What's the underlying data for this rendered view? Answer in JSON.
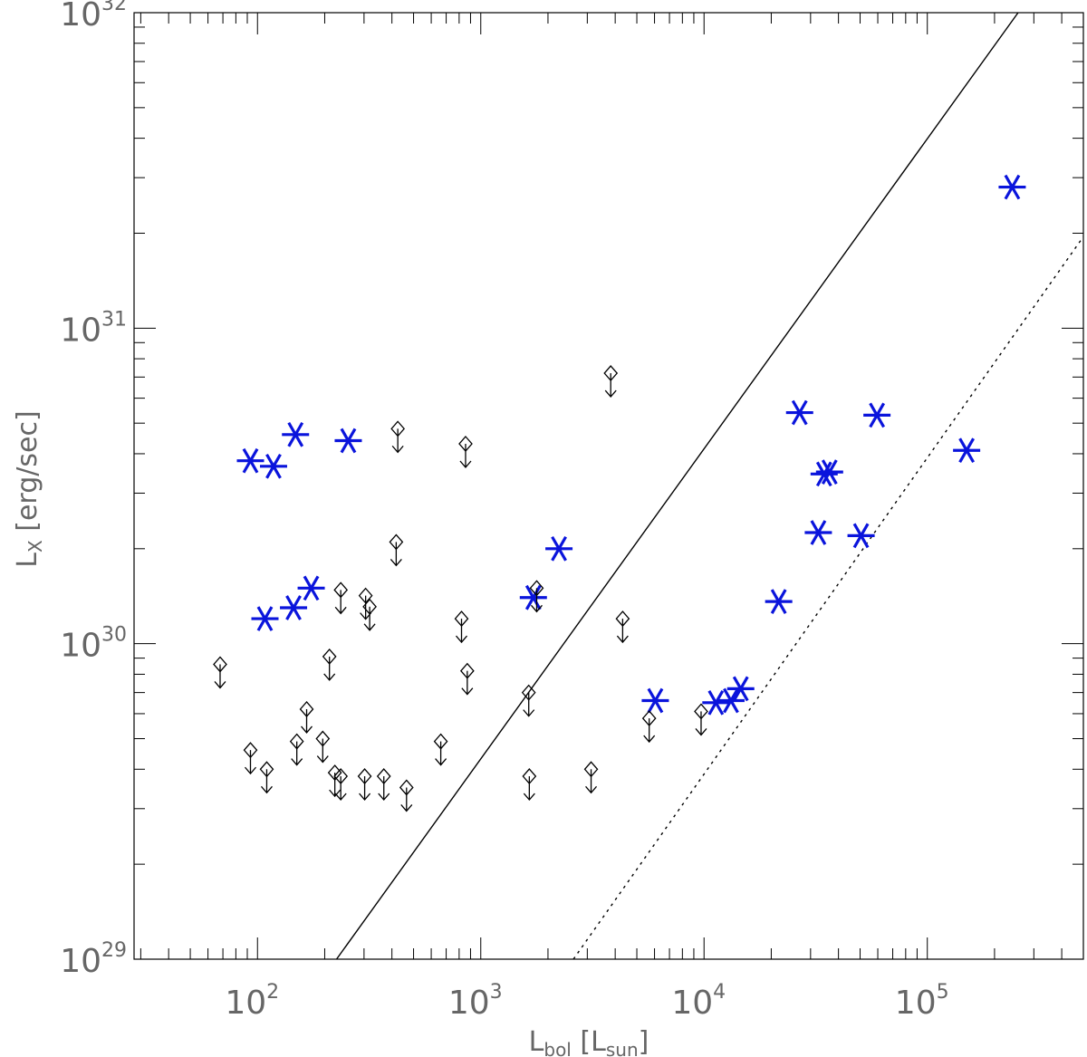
{
  "chart_data": {
    "type": "scatter",
    "title": "",
    "xlabel": {
      "main": "L",
      "sub": "bol",
      "unit_open": " [L",
      "unit_sub": "sun",
      "unit_close": "]"
    },
    "ylabel": {
      "main": "L",
      "sub": "X",
      "unit": " [erg/sec]"
    },
    "x_scale": "log",
    "y_scale": "log",
    "xlim": [
      28,
      500000
    ],
    "ylim": [
      1e+29,
      1e+32
    ],
    "grid": false,
    "x_tick_labels": [
      {
        "value": 100,
        "base": "10",
        "exp": "2"
      },
      {
        "value": 1000,
        "base": "10",
        "exp": "3"
      },
      {
        "value": 10000,
        "base": "10",
        "exp": "4"
      },
      {
        "value": 100000,
        "base": "10",
        "exp": "5"
      }
    ],
    "y_tick_labels": [
      {
        "value": 1e+29,
        "base": "10",
        "exp": "29"
      },
      {
        "value": 1e+30,
        "base": "10",
        "exp": "30"
      },
      {
        "value": 1e+31,
        "base": "10",
        "exp": "31"
      },
      {
        "value": 1e+32,
        "base": "10",
        "exp": "32"
      }
    ],
    "series": [
      {
        "marker": "asterisk",
        "color": "#0a14dc",
        "points": [
          {
            "x": 93,
            "y": 3.8e+30
          },
          {
            "x": 118,
            "y": 3.65e+30
          },
          {
            "x": 148,
            "y": 4.6e+30
          },
          {
            "x": 255,
            "y": 4.4e+30
          },
          {
            "x": 108,
            "y": 1.2e+30
          },
          {
            "x": 145,
            "y": 1.3e+30
          },
          {
            "x": 174,
            "y": 1.5e+30
          },
          {
            "x": 1720,
            "y": 1.4e+30
          },
          {
            "x": 2240,
            "y": 2e+30
          },
          {
            "x": 6050,
            "y": 6.6e+29
          },
          {
            "x": 11300,
            "y": 6.5e+29
          },
          {
            "x": 13200,
            "y": 6.6e+29
          },
          {
            "x": 14600,
            "y": 7.2e+29
          },
          {
            "x": 21600,
            "y": 1.36e+30
          },
          {
            "x": 26800,
            "y": 5.4e+30
          },
          {
            "x": 32500,
            "y": 2.25e+30
          },
          {
            "x": 34500,
            "y": 3.45e+30
          },
          {
            "x": 36500,
            "y": 3.5e+30
          },
          {
            "x": 50500,
            "y": 2.2e+30
          },
          {
            "x": 59500,
            "y": 5.3e+30
          },
          {
            "x": 150000,
            "y": 4.1e+30
          },
          {
            "x": 240000,
            "y": 2.8e+31
          }
        ]
      },
      {
        "marker": "diamond-upper-limit",
        "color": "#000000",
        "points": [
          {
            "x": 68,
            "y": 8.6e+29
          },
          {
            "x": 93,
            "y": 4.6e+29
          },
          {
            "x": 110,
            "y": 4e+29
          },
          {
            "x": 150,
            "y": 4.9e+29
          },
          {
            "x": 166,
            "y": 6.2e+29
          },
          {
            "x": 196,
            "y": 5e+29
          },
          {
            "x": 210,
            "y": 9.1e+29
          },
          {
            "x": 222,
            "y": 3.9e+29
          },
          {
            "x": 236,
            "y": 3.8e+29
          },
          {
            "x": 236,
            "y": 1.48e+30
          },
          {
            "x": 302,
            "y": 3.8e+29
          },
          {
            "x": 305,
            "y": 1.42e+30
          },
          {
            "x": 318,
            "y": 1.31e+30
          },
          {
            "x": 368,
            "y": 3.8e+29
          },
          {
            "x": 418,
            "y": 2.1e+30
          },
          {
            "x": 425,
            "y": 4.8e+30
          },
          {
            "x": 465,
            "y": 3.5e+29
          },
          {
            "x": 662,
            "y": 4.9e+29
          },
          {
            "x": 820,
            "y": 1.2e+30
          },
          {
            "x": 855,
            "y": 4.3e+30
          },
          {
            "x": 870,
            "y": 8.2e+29
          },
          {
            "x": 1640,
            "y": 7e+29
          },
          {
            "x": 1650,
            "y": 3.8e+29
          },
          {
            "x": 1780,
            "y": 1.5e+30
          },
          {
            "x": 3120,
            "y": 4e+29
          },
          {
            "x": 3820,
            "y": 7.2e+30
          },
          {
            "x": 4320,
            "y": 1.2e+30
          },
          {
            "x": 5680,
            "y": 5.8e+29
          },
          {
            "x": 9700,
            "y": 6.1e+29
          }
        ]
      }
    ],
    "lines": [
      {
        "style": "solid",
        "color": "#000000",
        "from": {
          "x": 226,
          "y": 1e+29
        },
        "to": {
          "x": 255000,
          "y": 1e+32
        }
      },
      {
        "style": "dotted",
        "color": "#000000",
        "from": {
          "x": 2600,
          "y": 1e+29
        },
        "to": {
          "x": 500000,
          "y": 1.95e+31
        }
      }
    ]
  }
}
